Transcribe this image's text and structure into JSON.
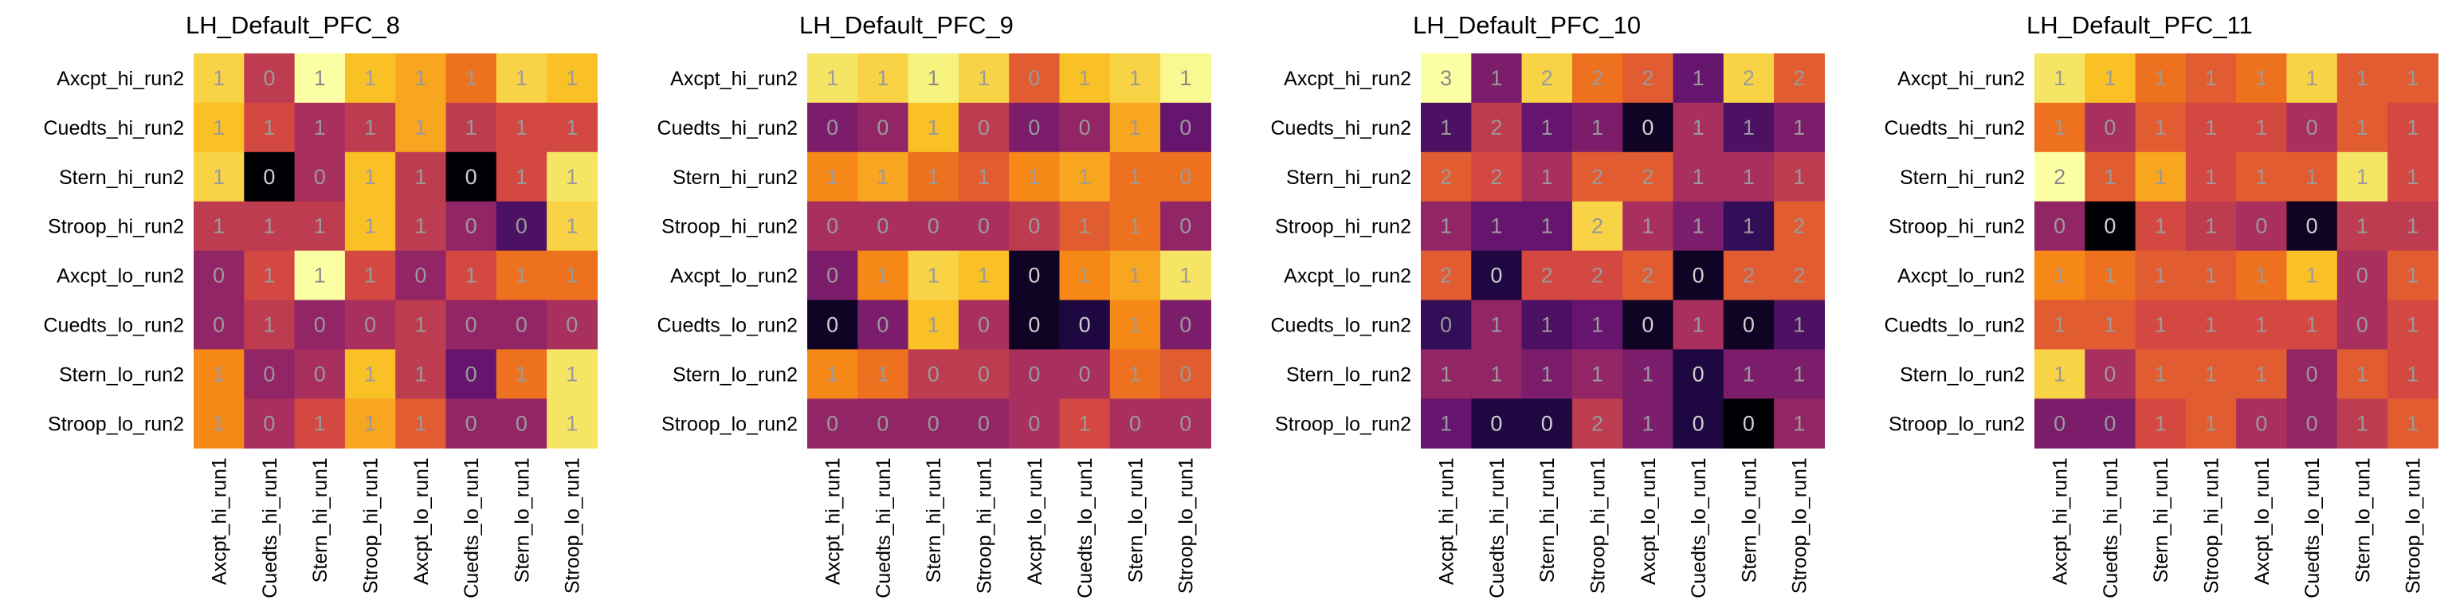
{
  "chart_data": [
    {
      "type": "heatmap",
      "title": "LH_Default_PFC_8",
      "x_labels": [
        "Axcpt_hi_run1",
        "Cuedts_hi_run1",
        "Stern_hi_run1",
        "Stroop_hi_run1",
        "Axcpt_lo_run1",
        "Cuedts_lo_run1",
        "Stern_lo_run1",
        "Stroop_lo_run1"
      ],
      "y_labels": [
        "Axcpt_hi_run2",
        "Cuedts_hi_run2",
        "Stern_hi_run2",
        "Stroop_hi_run2",
        "Axcpt_lo_run2",
        "Cuedts_lo_run2",
        "Stern_lo_run2",
        "Stroop_lo_run2"
      ],
      "values": [
        [
          0.8,
          0.45,
          1.0,
          0.75,
          0.7,
          0.6,
          0.8,
          0.75
        ],
        [
          0.75,
          0.5,
          0.4,
          0.45,
          0.7,
          0.45,
          0.5,
          0.5
        ],
        [
          0.8,
          0.0,
          0.4,
          0.75,
          0.45,
          0.0,
          0.5,
          0.85
        ],
        [
          0.45,
          0.45,
          0.45,
          0.75,
          0.45,
          0.35,
          0.2,
          0.8
        ],
        [
          0.35,
          0.5,
          1.0,
          0.5,
          0.35,
          0.5,
          0.6,
          0.6
        ],
        [
          0.35,
          0.45,
          0.35,
          0.4,
          0.45,
          0.35,
          0.35,
          0.4
        ],
        [
          0.65,
          0.35,
          0.4,
          0.75,
          0.45,
          0.25,
          0.6,
          0.85
        ],
        [
          0.65,
          0.4,
          0.5,
          0.7,
          0.55,
          0.35,
          0.35,
          0.85
        ]
      ],
      "labels": [
        [
          "1",
          "0",
          "1",
          "1",
          "1",
          "1",
          "1",
          "1"
        ],
        [
          "1",
          "1",
          "1",
          "1",
          "1",
          "1",
          "1",
          "1"
        ],
        [
          "1",
          "0",
          "0",
          "1",
          "1",
          "0",
          "1",
          "1"
        ],
        [
          "1",
          "1",
          "1",
          "1",
          "1",
          "0",
          "0",
          "1"
        ],
        [
          "0",
          "1",
          "1",
          "1",
          "0",
          "1",
          "1",
          "1"
        ],
        [
          "0",
          "1",
          "0",
          "0",
          "1",
          "0",
          "0",
          "0"
        ],
        [
          "1",
          "0",
          "0",
          "1",
          "1",
          "0",
          "1",
          "1"
        ],
        [
          "1",
          "0",
          "1",
          "1",
          "1",
          "0",
          "0",
          "1"
        ]
      ]
    },
    {
      "type": "heatmap",
      "title": "LH_Default_PFC_9",
      "x_labels": [
        "Axcpt_hi_run1",
        "Cuedts_hi_run1",
        "Stern_hi_run1",
        "Stroop_hi_run1",
        "Axcpt_lo_run1",
        "Cuedts_lo_run1",
        "Stern_lo_run1",
        "Stroop_lo_run1"
      ],
      "y_labels": [
        "Axcpt_hi_run2",
        "Cuedts_hi_run2",
        "Stern_hi_run2",
        "Stroop_hi_run2",
        "Axcpt_lo_run2",
        "Cuedts_lo_run2",
        "Stern_lo_run2",
        "Stroop_lo_run2"
      ],
      "values": [
        [
          0.85,
          0.8,
          0.9,
          0.8,
          0.55,
          0.75,
          0.8,
          0.95
        ],
        [
          0.3,
          0.35,
          0.75,
          0.45,
          0.3,
          0.35,
          0.7,
          0.25
        ],
        [
          0.65,
          0.7,
          0.6,
          0.55,
          0.65,
          0.7,
          0.6,
          0.6
        ],
        [
          0.4,
          0.4,
          0.4,
          0.4,
          0.45,
          0.55,
          0.6,
          0.35
        ],
        [
          0.3,
          0.65,
          0.8,
          0.75,
          0.05,
          0.65,
          0.7,
          0.85
        ],
        [
          0.05,
          0.3,
          0.75,
          0.4,
          0.05,
          0.1,
          0.65,
          0.3
        ],
        [
          0.65,
          0.6,
          0.45,
          0.45,
          0.4,
          0.4,
          0.6,
          0.55
        ],
        [
          0.35,
          0.35,
          0.35,
          0.35,
          0.4,
          0.5,
          0.4,
          0.4
        ]
      ],
      "labels": [
        [
          "1",
          "1",
          "1",
          "1",
          "0",
          "1",
          "1",
          "1"
        ],
        [
          "0",
          "0",
          "1",
          "0",
          "0",
          "0",
          "1",
          "0"
        ],
        [
          "1",
          "1",
          "1",
          "1",
          "1",
          "1",
          "1",
          "0"
        ],
        [
          "0",
          "0",
          "0",
          "0",
          "0",
          "1",
          "1",
          "0"
        ],
        [
          "0",
          "1",
          "1",
          "1",
          "0",
          "1",
          "1",
          "1"
        ],
        [
          "0",
          "0",
          "1",
          "0",
          "0",
          "0",
          "1",
          "0"
        ],
        [
          "1",
          "1",
          "0",
          "0",
          "0",
          "0",
          "1",
          "0"
        ],
        [
          "0",
          "0",
          "0",
          "0",
          "0",
          "1",
          "0",
          "0"
        ]
      ]
    },
    {
      "type": "heatmap",
      "title": "LH_Default_PFC_10",
      "x_labels": [
        "Axcpt_hi_run1",
        "Cuedts_hi_run1",
        "Stern_hi_run1",
        "Stroop_hi_run1",
        "Axcpt_lo_run1",
        "Cuedts_lo_run1",
        "Stern_lo_run1",
        "Stroop_lo_run1"
      ],
      "y_labels": [
        "Axcpt_hi_run2",
        "Cuedts_hi_run2",
        "Stern_hi_run2",
        "Stroop_hi_run2",
        "Axcpt_lo_run2",
        "Cuedts_lo_run2",
        "Stern_lo_run2",
        "Stroop_lo_run2"
      ],
      "values": [
        [
          1.0,
          0.3,
          0.8,
          0.6,
          0.55,
          0.25,
          0.8,
          0.55
        ],
        [
          0.2,
          0.45,
          0.25,
          0.3,
          0.05,
          0.4,
          0.2,
          0.3
        ],
        [
          0.55,
          0.5,
          0.4,
          0.55,
          0.55,
          0.4,
          0.4,
          0.45
        ],
        [
          0.35,
          0.25,
          0.25,
          0.8,
          0.4,
          0.3,
          0.15,
          0.55
        ],
        [
          0.55,
          0.1,
          0.5,
          0.5,
          0.55,
          0.05,
          0.55,
          0.55
        ],
        [
          0.15,
          0.35,
          0.2,
          0.25,
          0.05,
          0.4,
          0.05,
          0.2
        ],
        [
          0.35,
          0.35,
          0.3,
          0.35,
          0.3,
          0.1,
          0.3,
          0.3
        ],
        [
          0.25,
          0.1,
          0.1,
          0.45,
          0.3,
          0.1,
          0.0,
          0.35
        ]
      ],
      "labels": [
        [
          "3",
          "1",
          "2",
          "2",
          "2",
          "1",
          "2",
          "2"
        ],
        [
          "1",
          "2",
          "1",
          "1",
          "0",
          "1",
          "1",
          "1"
        ],
        [
          "2",
          "2",
          "1",
          "2",
          "2",
          "1",
          "1",
          "1"
        ],
        [
          "1",
          "1",
          "1",
          "2",
          "1",
          "1",
          "1",
          "2"
        ],
        [
          "2",
          "0",
          "2",
          "2",
          "2",
          "0",
          "2",
          "2"
        ],
        [
          "0",
          "1",
          "1",
          "1",
          "0",
          "1",
          "0",
          "1"
        ],
        [
          "1",
          "1",
          "1",
          "1",
          "1",
          "0",
          "1",
          "1"
        ],
        [
          "1",
          "0",
          "0",
          "2",
          "1",
          "0",
          "0",
          "1"
        ]
      ]
    },
    {
      "type": "heatmap",
      "title": "LH_Default_PFC_11",
      "x_labels": [
        "Axcpt_hi_run1",
        "Cuedts_hi_run1",
        "Stern_hi_run1",
        "Stroop_hi_run1",
        "Axcpt_lo_run1",
        "Cuedts_lo_run1",
        "Stern_lo_run1",
        "Stroop_lo_run1"
      ],
      "y_labels": [
        "Axcpt_hi_run2",
        "Cuedts_hi_run2",
        "Stern_hi_run2",
        "Stroop_hi_run2",
        "Axcpt_lo_run2",
        "Cuedts_lo_run2",
        "Stern_lo_run2",
        "Stroop_lo_run2"
      ],
      "values": [
        [
          0.85,
          0.75,
          0.6,
          0.55,
          0.6,
          0.8,
          0.55,
          0.55
        ],
        [
          0.6,
          0.4,
          0.55,
          0.5,
          0.5,
          0.4,
          0.55,
          0.5
        ],
        [
          1.0,
          0.55,
          0.7,
          0.5,
          0.55,
          0.55,
          0.85,
          0.5
        ],
        [
          0.35,
          0.0,
          0.5,
          0.45,
          0.4,
          0.05,
          0.45,
          0.45
        ],
        [
          0.65,
          0.6,
          0.55,
          0.55,
          0.6,
          0.75,
          0.4,
          0.55
        ],
        [
          0.55,
          0.55,
          0.5,
          0.5,
          0.5,
          0.5,
          0.4,
          0.5
        ],
        [
          0.8,
          0.4,
          0.55,
          0.55,
          0.55,
          0.35,
          0.55,
          0.5
        ],
        [
          0.3,
          0.3,
          0.5,
          0.55,
          0.4,
          0.35,
          0.45,
          0.55
        ]
      ],
      "labels": [
        [
          "1",
          "1",
          "1",
          "1",
          "1",
          "1",
          "1",
          "1"
        ],
        [
          "1",
          "0",
          "1",
          "1",
          "1",
          "0",
          "1",
          "1"
        ],
        [
          "2",
          "1",
          "1",
          "1",
          "1",
          "1",
          "1",
          "1"
        ],
        [
          "0",
          "0",
          "1",
          "1",
          "0",
          "0",
          "1",
          "1"
        ],
        [
          "1",
          "1",
          "1",
          "1",
          "1",
          "1",
          "0",
          "1"
        ],
        [
          "1",
          "1",
          "1",
          "1",
          "1",
          "1",
          "0",
          "1"
        ],
        [
          "1",
          "0",
          "1",
          "1",
          "1",
          "0",
          "1",
          "1"
        ],
        [
          "0",
          "0",
          "1",
          "1",
          "0",
          "0",
          "1",
          "1"
        ]
      ]
    }
  ]
}
